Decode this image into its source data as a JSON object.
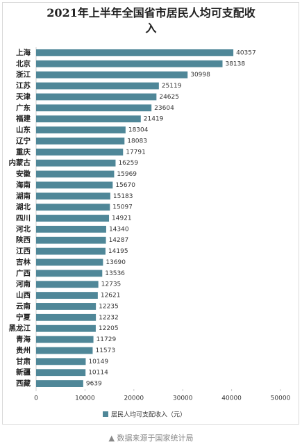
{
  "chart_data": {
    "type": "bar",
    "orientation": "horizontal",
    "title": "2021年上半年全国省市居民人均可支配收入",
    "categories": [
      "上海",
      "北京",
      "浙江",
      "江苏",
      "天津",
      "广东",
      "福建",
      "山东",
      "辽宁",
      "重庆",
      "内蒙古",
      "安徽",
      "海南",
      "湖南",
      "湖北",
      "四川",
      "河北",
      "陕西",
      "江西",
      "吉林",
      "广西",
      "河南",
      "山西",
      "云南",
      "宁夏",
      "黑龙江",
      "青海",
      "贵州",
      "甘肃",
      "新疆",
      "西藏"
    ],
    "series": [
      {
        "name": "居民人均可支配收入（元）",
        "color": "#4f8798",
        "values": [
          40357,
          38138,
          30998,
          25119,
          24625,
          23604,
          21419,
          18304,
          18083,
          17791,
          16259,
          15969,
          15670,
          15183,
          15097,
          14921,
          14340,
          14287,
          14195,
          13690,
          13536,
          12735,
          12621,
          12235,
          12232,
          12205,
          11729,
          11573,
          10149,
          10114,
          9639
        ]
      }
    ],
    "xlim": [
      0,
      50000
    ],
    "xticks": [
      0,
      10000,
      20000,
      30000,
      40000,
      50000
    ],
    "legend": "bottom",
    "grid": false
  },
  "source": "▲ 数据来源于国家统计局"
}
